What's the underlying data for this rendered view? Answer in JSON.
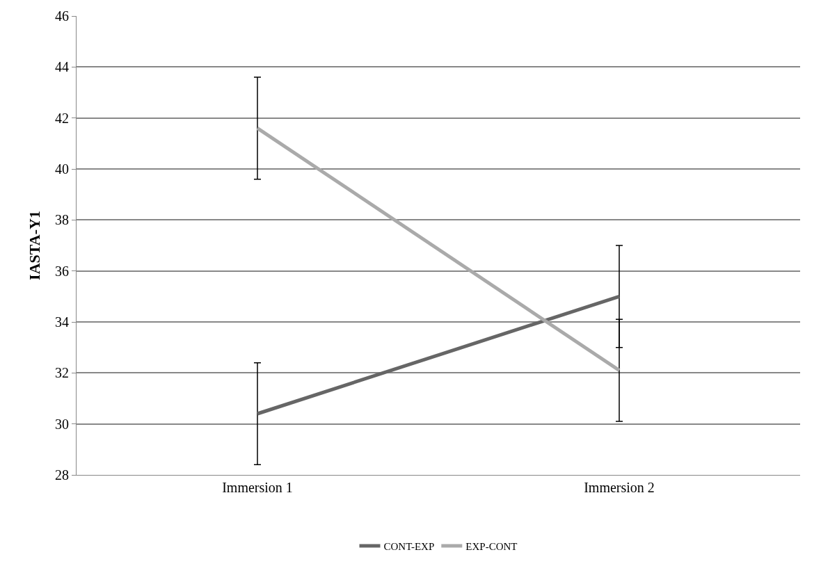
{
  "chart_data": {
    "type": "line",
    "ylabel": "IASTA-Y1",
    "categories": [
      "Immersion 1",
      "Immersion 2"
    ],
    "series": [
      {
        "name": "CONT-EXP",
        "color": "#666666",
        "values": [
          30.4,
          35.0
        ],
        "errors": [
          2,
          2
        ]
      },
      {
        "name": "EXP-CONT",
        "color": "#aaaaaa",
        "values": [
          41.6,
          32.1
        ],
        "errors": [
          2,
          2
        ]
      }
    ],
    "ylim": [
      28,
      46
    ],
    "yticks": [
      28,
      30,
      32,
      34,
      36,
      38,
      40,
      42,
      44,
      46
    ],
    "grid": "y",
    "legend": "bottom",
    "marker": "none",
    "line_style": "solid"
  }
}
